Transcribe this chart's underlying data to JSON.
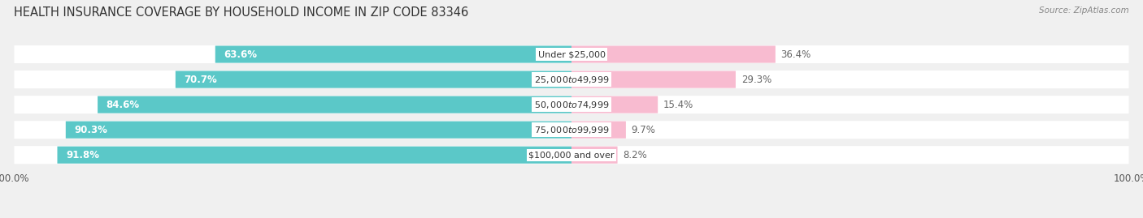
{
  "title": "HEALTH INSURANCE COVERAGE BY HOUSEHOLD INCOME IN ZIP CODE 83346",
  "source": "Source: ZipAtlas.com",
  "categories": [
    "Under $25,000",
    "$25,000 to $49,999",
    "$50,000 to $74,999",
    "$75,000 to $99,999",
    "$100,000 and over"
  ],
  "with_coverage": [
    63.6,
    70.7,
    84.6,
    90.3,
    91.8
  ],
  "without_coverage": [
    36.4,
    29.3,
    15.4,
    9.7,
    8.2
  ],
  "color_with": "#5BC8C8",
  "color_without": "#F06292",
  "color_without_light": "#F8BBD0",
  "background_color": "#f0f0f0",
  "bar_bg_color": "#ffffff",
  "title_fontsize": 10.5,
  "label_fontsize": 8.5,
  "cat_fontsize": 8.0,
  "pct_fontsize": 8.5,
  "bar_height": 0.68
}
